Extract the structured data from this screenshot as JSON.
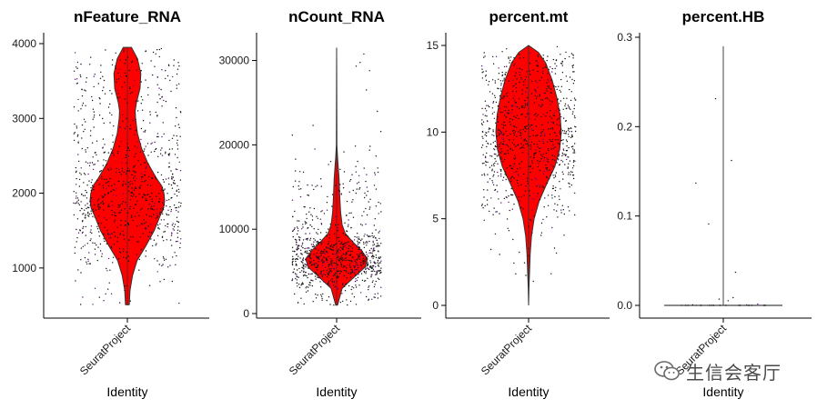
{
  "chart_data": [
    {
      "type": "violin",
      "title": "nFeature_RNA",
      "xlabel": "Identity",
      "ylabel": "",
      "categories": [
        "SeuratProject"
      ],
      "ylim": [
        500,
        4000
      ],
      "yticks": [
        1000,
        2000,
        3000,
        4000
      ],
      "fill": "#ff0000",
      "distribution": [
        [
          510,
          0.05
        ],
        [
          700,
          0.07
        ],
        [
          900,
          0.14
        ],
        [
          1100,
          0.26
        ],
        [
          1300,
          0.5
        ],
        [
          1500,
          0.72
        ],
        [
          1700,
          0.88
        ],
        [
          1800,
          0.97
        ],
        [
          1900,
          1.0
        ],
        [
          2000,
          0.98
        ],
        [
          2100,
          0.92
        ],
        [
          2200,
          0.78
        ],
        [
          2400,
          0.55
        ],
        [
          2600,
          0.38
        ],
        [
          2800,
          0.27
        ],
        [
          3000,
          0.22
        ],
        [
          3100,
          0.21
        ],
        [
          3200,
          0.24
        ],
        [
          3400,
          0.34
        ],
        [
          3600,
          0.36
        ],
        [
          3800,
          0.27
        ],
        [
          3950,
          0.11
        ]
      ],
      "points": {
        "count": 900,
        "median": 1950,
        "min": 500,
        "max": 3950
      }
    },
    {
      "type": "violin",
      "title": "nCount_RNA",
      "xlabel": "Identity",
      "ylabel": "",
      "categories": [
        "SeuratProject"
      ],
      "ylim": [
        0,
        32000
      ],
      "yticks": [
        0,
        10000,
        20000,
        30000
      ],
      "fill": "#ff0000",
      "distribution": [
        [
          1000,
          0.03
        ],
        [
          3000,
          0.18
        ],
        [
          4500,
          0.62
        ],
        [
          5500,
          0.92
        ],
        [
          6500,
          1.0
        ],
        [
          7500,
          0.8
        ],
        [
          8500,
          0.52
        ],
        [
          9500,
          0.28
        ],
        [
          10500,
          0.18
        ],
        [
          12000,
          0.13
        ],
        [
          14000,
          0.1
        ],
        [
          16000,
          0.08
        ],
        [
          17500,
          0.05
        ],
        [
          18500,
          0.03
        ],
        [
          20000,
          0.01
        ],
        [
          31500,
          0.0
        ]
      ],
      "points": {
        "count": 900,
        "median": 6800,
        "min": 1000,
        "max": 31500
      }
    },
    {
      "type": "violin",
      "title": "percent.mt",
      "xlabel": "Identity",
      "ylabel": "",
      "categories": [
        "SeuratProject"
      ],
      "ylim": [
        0,
        15
      ],
      "yticks": [
        0,
        5,
        10,
        15
      ],
      "fill": "#ff0000",
      "distribution": [
        [
          0,
          0.0
        ],
        [
          1,
          0.01
        ],
        [
          2,
          0.03
        ],
        [
          3,
          0.05
        ],
        [
          4,
          0.09
        ],
        [
          5,
          0.17
        ],
        [
          6,
          0.32
        ],
        [
          7,
          0.55
        ],
        [
          8,
          0.8
        ],
        [
          9,
          0.95
        ],
        [
          10,
          1.0
        ],
        [
          11,
          0.96
        ],
        [
          12,
          0.86
        ],
        [
          13,
          0.72
        ],
        [
          14,
          0.52
        ],
        [
          14.6,
          0.3
        ],
        [
          15,
          0.0
        ]
      ],
      "points": {
        "count": 900,
        "median": 9.7,
        "min": 0,
        "max": 15
      }
    },
    {
      "type": "violin",
      "title": "percent.HB",
      "xlabel": "Identity",
      "ylabel": "",
      "categories": [
        "SeuratProject"
      ],
      "ylim": [
        0,
        0.3
      ],
      "yticks": [
        0.0,
        0.1,
        0.2,
        0.3
      ],
      "fill": "#ff0000",
      "distribution": [
        [
          0,
          1.0
        ],
        [
          0.001,
          0.0
        ],
        [
          0.29,
          0.0
        ]
      ],
      "points": {
        "count": 30,
        "median": 0,
        "min": 0,
        "max": 0.29
      }
    }
  ],
  "watermark": {
    "text": "生信会客厅",
    "icon": "wechat-icon"
  }
}
